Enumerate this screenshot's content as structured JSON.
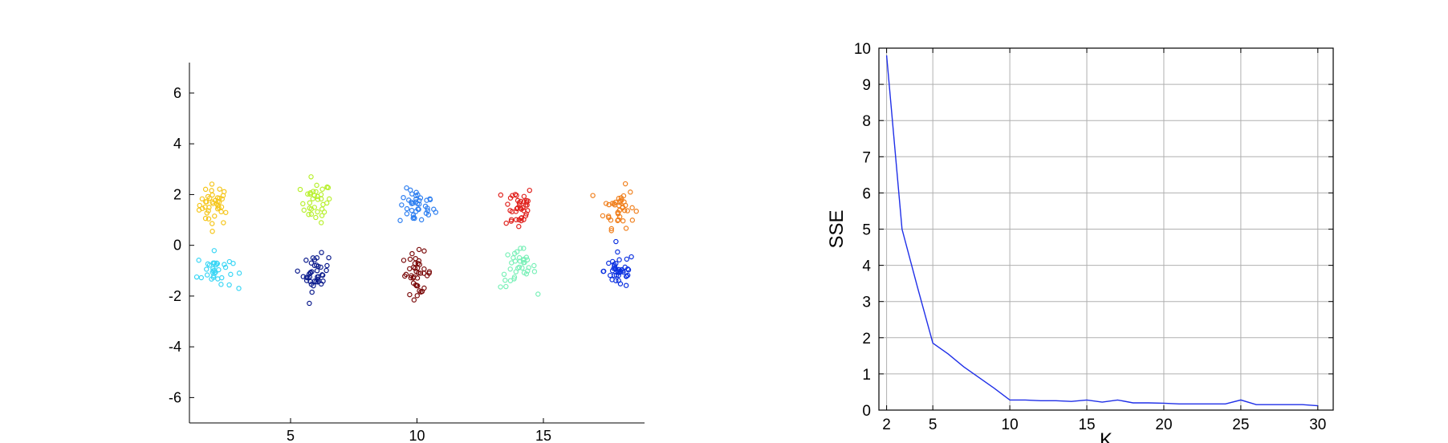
{
  "colors": {
    "axis": "#000000",
    "grid": "#b0b0b0",
    "line": "#1f2fe8",
    "clusters": [
      "#f5c518",
      "#b8f02e",
      "#2e7ff0",
      "#e0201c",
      "#f07f1c",
      "#3ad6f5",
      "#0a1a8c",
      "#7a0a0a",
      "#7af0b8",
      "#0a30e0"
    ]
  },
  "chart_data": [
    {
      "type": "scatter",
      "title": "",
      "xlabel": "",
      "ylabel": "",
      "xlim": [
        1,
        19
      ],
      "ylim": [
        -7,
        7.2
      ],
      "xticks": [
        5,
        10,
        15
      ],
      "yticks": [
        6,
        4,
        2,
        0,
        -2,
        -4,
        -6
      ],
      "grid": false,
      "marker": "hollow-circle",
      "clusters": [
        {
          "color_index": 0,
          "center": [
            2,
            1.6
          ],
          "spread": [
            0.3,
            0.4
          ],
          "n": 40
        },
        {
          "color_index": 1,
          "center": [
            6,
            1.7
          ],
          "spread": [
            0.3,
            0.4
          ],
          "n": 35
        },
        {
          "color_index": 2,
          "center": [
            10,
            1.5
          ],
          "spread": [
            0.35,
            0.35
          ],
          "n": 40
        },
        {
          "color_index": 3,
          "center": [
            14,
            1.5
          ],
          "spread": [
            0.3,
            0.45
          ],
          "n": 40
        },
        {
          "color_index": 4,
          "center": [
            18,
            1.5
          ],
          "spread": [
            0.3,
            0.4
          ],
          "n": 40
        },
        {
          "color_index": 5,
          "center": [
            2,
            -1.0
          ],
          "spread": [
            0.35,
            0.35
          ],
          "n": 35
        },
        {
          "color_index": 6,
          "center": [
            6,
            -1.1
          ],
          "spread": [
            0.25,
            0.35
          ],
          "n": 40
        },
        {
          "color_index": 7,
          "center": [
            10,
            -1.1
          ],
          "spread": [
            0.3,
            0.4
          ],
          "n": 40
        },
        {
          "color_index": 8,
          "center": [
            14,
            -0.9
          ],
          "spread": [
            0.35,
            0.4
          ],
          "n": 35
        },
        {
          "color_index": 9,
          "center": [
            18,
            -1.0
          ],
          "spread": [
            0.3,
            0.35
          ],
          "n": 40
        }
      ]
    },
    {
      "type": "line",
      "title": "",
      "xlabel": "K",
      "ylabel": "SSE",
      "xlim": [
        1.5,
        31
      ],
      "ylim": [
        0,
        10
      ],
      "xticks": [
        2,
        5,
        10,
        15,
        20,
        25,
        30
      ],
      "yticks": [
        0,
        1,
        2,
        3,
        4,
        5,
        6,
        7,
        8,
        9,
        10
      ],
      "grid": true,
      "x": [
        2,
        3,
        4,
        5,
        6,
        7,
        8,
        9,
        10,
        11,
        12,
        13,
        14,
        15,
        16,
        17,
        18,
        19,
        20,
        21,
        22,
        23,
        24,
        25,
        26,
        27,
        28,
        29,
        30
      ],
      "y": [
        9.8,
        5.0,
        3.4,
        1.85,
        1.55,
        1.2,
        0.9,
        0.6,
        0.28,
        0.28,
        0.26,
        0.26,
        0.24,
        0.28,
        0.22,
        0.28,
        0.2,
        0.2,
        0.19,
        0.17,
        0.17,
        0.17,
        0.17,
        0.28,
        0.15,
        0.15,
        0.15,
        0.15,
        0.12
      ]
    }
  ]
}
